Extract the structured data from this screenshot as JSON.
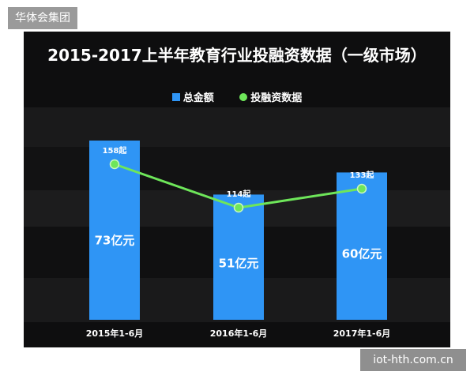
{
  "watermarks": {
    "top": "华体会集团",
    "bottom": "iot-hth.com.cn"
  },
  "chart_data": {
    "type": "bar",
    "title": "2015-2017上半年教育行业投融资数据（一级市场）",
    "categories": [
      "2015年1-6月",
      "2016年1-6月",
      "2017年1-6月"
    ],
    "series": [
      {
        "name": "总金额",
        "type": "bar",
        "values": [
          73,
          51,
          60
        ],
        "labels": [
          "73亿元",
          "51亿元",
          "60亿元"
        ],
        "unit": "亿元",
        "color": "#2f95f5"
      },
      {
        "name": "投融资数据",
        "type": "line",
        "values": [
          158,
          114,
          133
        ],
        "labels": [
          "158起",
          "114起",
          "133起"
        ],
        "unit": "起",
        "color": "#6ee65a"
      }
    ],
    "legend": "top-center",
    "grid": false
  }
}
